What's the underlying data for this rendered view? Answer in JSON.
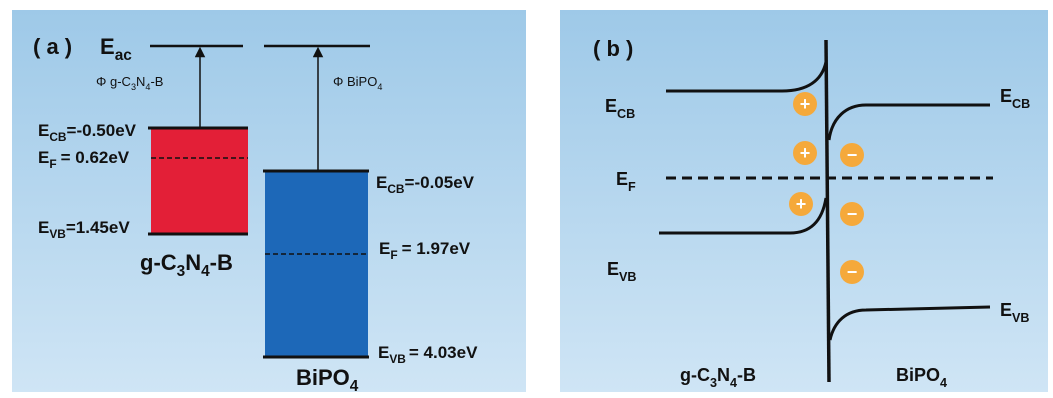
{
  "colors": {
    "panel_bg_top": "#9ec9e8",
    "panel_bg_bottom": "#cfe5f5",
    "gcn_band": "#e31f37",
    "bipo4_band": "#1d68b8",
    "carrier": "#f5a93b",
    "line": "#111111"
  },
  "panel_a": {
    "label": "( a )",
    "vacuum": {
      "main": "E",
      "sub": "ac"
    },
    "phi_gcn": {
      "prefix": "Φ g-C",
      "s1": "3",
      "m1": "N",
      "s2": "4",
      "suffix": "-B"
    },
    "phi_bipo4": {
      "prefix": "Φ BiPO",
      "sub": "4"
    },
    "gcn_cb": {
      "main": "E",
      "sub": "CB",
      "value": "=-0.50eV"
    },
    "gcn_f": {
      "main": "E",
      "sub": "F",
      "value": "= 0.62eV"
    },
    "gcn_vb": {
      "main": "E",
      "sub": "VB",
      "value": "=1.45eV"
    },
    "gcn_name": {
      "a": "g-C",
      "s1": "3",
      "b": "N",
      "s2": "4",
      "c": "-B"
    },
    "bipo4_cb": {
      "main": "E",
      "sub": "CB",
      "value": "=-0.05eV"
    },
    "bipo4_f": {
      "main": "E",
      "sub": "F",
      "value": "= 1.97eV"
    },
    "bipo4_vb": {
      "main": "E",
      "sub": "VB",
      "value": "= 4.03eV"
    },
    "bipo4_name": {
      "a": "BiPO",
      "s": "4"
    }
  },
  "panel_b": {
    "label": "( b )",
    "left_cb": {
      "main": "E",
      "sub": "CB"
    },
    "left_f": {
      "main": "E",
      "sub": "F"
    },
    "left_vb": {
      "main": "E",
      "sub": "VB"
    },
    "right_cb": {
      "main": "E",
      "sub": "CB"
    },
    "right_vb": {
      "main": "E",
      "sub": "VB"
    },
    "holes": [
      "+",
      "+",
      "+"
    ],
    "electrons": [
      "−",
      "−",
      "−"
    ],
    "left_name": {
      "a": "g-C",
      "s1": "3",
      "b": "N",
      "s2": "4",
      "c": "-B"
    },
    "right_name": {
      "a": "BiPO",
      "s": "4"
    }
  }
}
